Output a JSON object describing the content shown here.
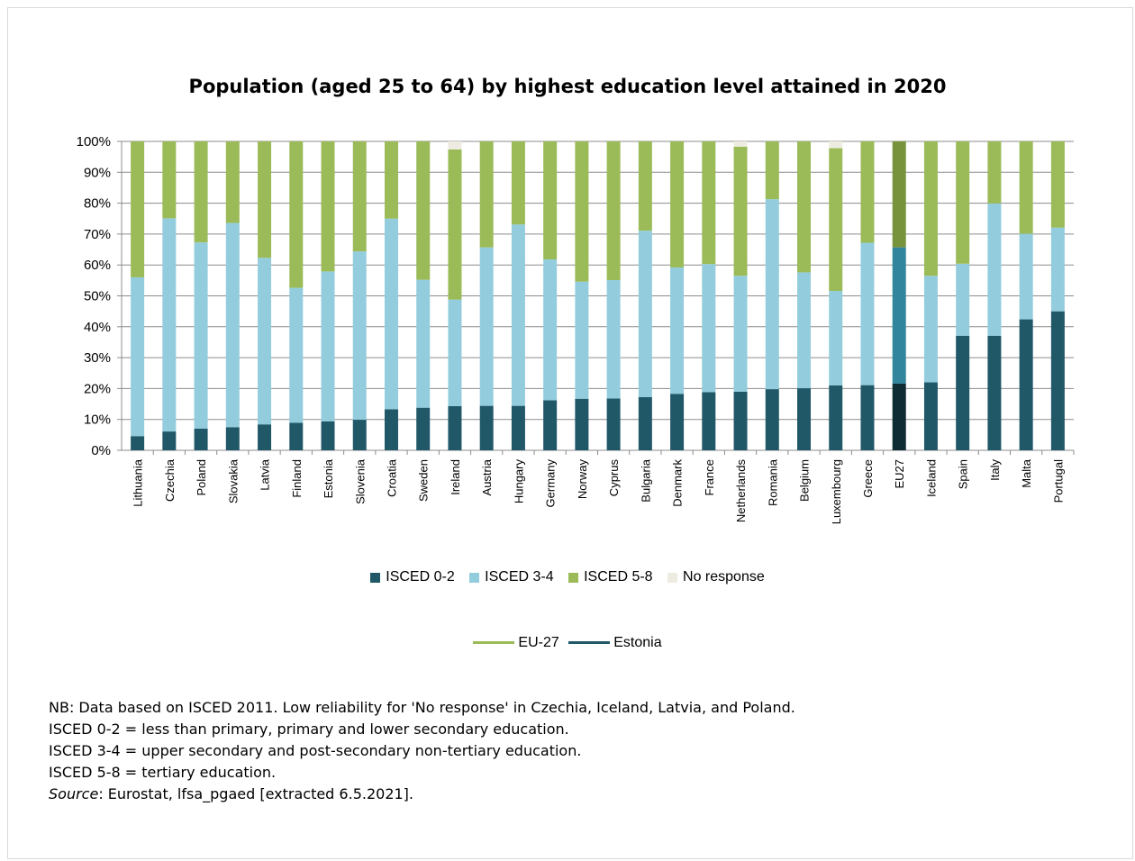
{
  "chart_data": {
    "type": "bar",
    "stacked": true,
    "title": "Population (aged 25 to 64) by highest education level attained in 2020",
    "xlabel": "",
    "ylabel": "",
    "ylim": [
      0,
      100
    ],
    "y_ticks": [
      "0%",
      "10%",
      "20%",
      "30%",
      "40%",
      "50%",
      "60%",
      "70%",
      "80%",
      "90%",
      "100%"
    ],
    "grid": true,
    "legend_position": "bottom",
    "categories": [
      "Lithuania",
      "Czechia",
      "Poland",
      "Slovakia",
      "Latvia",
      "Finland",
      "Estonia",
      "Slovenia",
      "Croatia",
      "Sweden",
      "Ireland",
      "Austria",
      "Hungary",
      "Germany",
      "Norway",
      "Cyprus",
      "Bulgaria",
      "Denmark",
      "France",
      "Netherlands",
      "Romania",
      "Belgium",
      "Luxembourg",
      "Greece",
      "EU27",
      "Iceland",
      "Spain",
      "Italy",
      "Malta",
      "Portugal"
    ],
    "highlight_category": "EU27",
    "series": [
      {
        "name": "ISCED 0-2",
        "color": "#215868",
        "highlight_color": "#0f2b33",
        "values": [
          4.6,
          6.1,
          7.0,
          7.5,
          8.4,
          8.9,
          9.4,
          9.9,
          13.3,
          13.8,
          14.3,
          14.4,
          14.4,
          16.2,
          16.7,
          16.8,
          17.2,
          18.3,
          18.8,
          19.0,
          19.8,
          20.1,
          21.0,
          21.1,
          21.6,
          22.0,
          37.1,
          37.1,
          42.4,
          45.0
        ]
      },
      {
        "name": "ISCED 3-4",
        "color": "#93cddd",
        "highlight_color": "#31859c",
        "values": [
          51.4,
          69.0,
          60.3,
          66.1,
          53.9,
          43.7,
          48.5,
          54.5,
          61.7,
          41.4,
          34.5,
          51.3,
          58.7,
          45.6,
          37.9,
          38.3,
          53.9,
          40.9,
          41.5,
          37.5,
          61.5,
          37.5,
          30.6,
          46.1,
          44.1,
          34.5,
          23.3,
          42.8,
          27.7,
          27.1
        ]
      },
      {
        "name": "ISCED 5-8",
        "color": "#9bbb59",
        "highlight_color": "#77933c",
        "values": [
          44.0,
          24.9,
          32.7,
          26.4,
          37.7,
          47.4,
          42.1,
          35.6,
          25.0,
          44.8,
          48.6,
          34.3,
          26.9,
          38.2,
          45.4,
          44.9,
          28.9,
          40.8,
          39.7,
          41.8,
          18.7,
          42.4,
          46.2,
          32.8,
          34.3,
          43.5,
          39.6,
          20.1,
          29.9,
          27.9
        ]
      },
      {
        "name": "No response",
        "color": "#eeece1",
        "highlight_color": "#eeece1",
        "values": [
          0.0,
          0.0,
          0.0,
          0.0,
          0.0,
          0.0,
          0.0,
          0.0,
          0.0,
          0.0,
          2.6,
          0.0,
          0.0,
          0.0,
          0.0,
          0.0,
          0.0,
          0.0,
          0.0,
          1.7,
          0.0,
          0.0,
          2.2,
          0.0,
          0.0,
          0.0,
          0.0,
          0.0,
          0.0,
          0.0
        ]
      }
    ],
    "line_legend": [
      {
        "name": "EU-27",
        "color": "#9bbb59"
      },
      {
        "name": "Estonia",
        "color": "#215868"
      }
    ]
  },
  "notes": {
    "line1": "NB: Data based on ISCED 2011. Low reliability for 'No response' in Czechia, Iceland, Latvia, and Poland.",
    "line2": "ISCED 0-2 = less than primary, primary and lower secondary education.",
    "line3": "ISCED 3-4 = upper secondary and post-secondary non-tertiary education.",
    "line4": "ISCED 5-8 = tertiary education.",
    "source_label": "Source",
    "source_text": ": Eurostat, lfsa_pgaed [extracted 6.5.2021]."
  }
}
